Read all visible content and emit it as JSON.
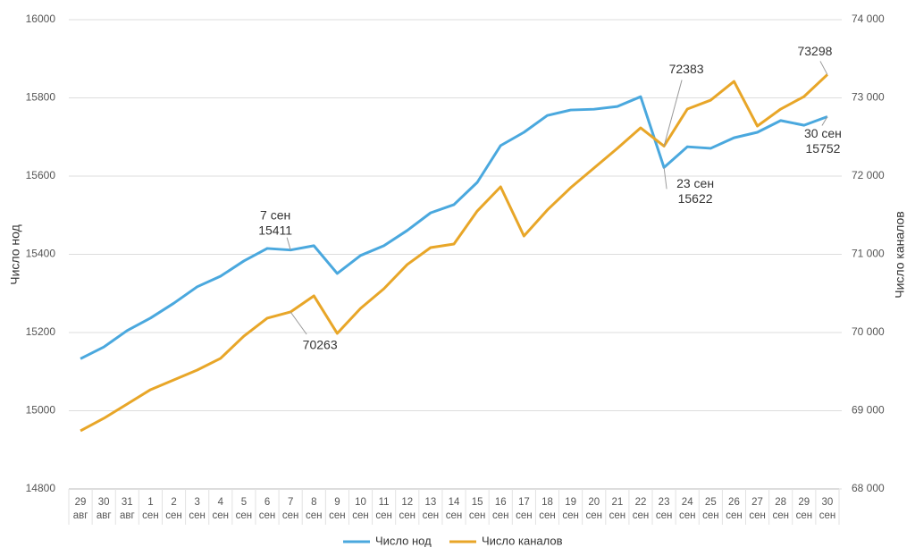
{
  "chart_data": {
    "type": "line",
    "categories": [
      "29 авг",
      "30 авг",
      "31 авг",
      "1 сен",
      "2 сен",
      "3 сен",
      "4 сен",
      "5 сен",
      "6 сен",
      "7 сен",
      "8 сен",
      "9 сен",
      "10 сен",
      "11 сен",
      "12 сен",
      "13 сен",
      "14 сен",
      "15 сен",
      "16 сен",
      "17 сен",
      "18 сен",
      "19 сен",
      "20 сен",
      "21 сен",
      "22 сен",
      "23 сен",
      "24 сен",
      "25 сен",
      "26 сен",
      "27 сен",
      "28 сен",
      "29 сен",
      "30 сен"
    ],
    "series": [
      {
        "name": "Число нод",
        "color": "#4aa8de",
        "axis": "y",
        "values": [
          15133,
          15163,
          15205,
          15237,
          15275,
          15317,
          15344,
          15383,
          15415,
          15411,
          15422,
          15351,
          15397,
          15422,
          15461,
          15506,
          15527,
          15584,
          15678,
          15712,
          15755,
          15769,
          15771,
          15778,
          15803,
          15622,
          15675,
          15671,
          15698,
          15712,
          15742,
          15730,
          15752
        ]
      },
      {
        "name": "Число каналов",
        "color": "#e8a628",
        "axis": "y2",
        "values": [
          68743,
          68903,
          69086,
          69269,
          69394,
          69520,
          69669,
          69954,
          70183,
          70263,
          70469,
          69989,
          70309,
          70560,
          70869,
          71086,
          71131,
          71554,
          71863,
          71234,
          71566,
          71851,
          72103,
          72354,
          72617,
          72383,
          72857,
          72971,
          73211,
          72640,
          72857,
          73017,
          73298
        ]
      }
    ],
    "ylabel": "Число нод",
    "y2label": "Число каналов",
    "ylim": [
      14800,
      16000
    ],
    "yticks": [
      14800,
      15000,
      15200,
      15400,
      15600,
      15800,
      16000
    ],
    "y2lim": [
      68000,
      74000
    ],
    "y2ticks": [
      {
        "value": 68000,
        "label": "68 000"
      },
      {
        "value": 69000,
        "label": "69 000"
      },
      {
        "value": 70000,
        "label": "70 000"
      },
      {
        "value": 71000,
        "label": "71 000"
      },
      {
        "value": 72000,
        "label": "72 000"
      },
      {
        "value": 73000,
        "label": "73 000"
      },
      {
        "value": 74000,
        "label": "74 000"
      }
    ],
    "grid": true,
    "legend": "bottom",
    "annotations": [
      {
        "series": "Число нод",
        "x": "7 сен",
        "y": 15411
      },
      {
        "series": "Число каналов",
        "y": 70263
      },
      {
        "series": "Число каналов",
        "y": 72383
      },
      {
        "series": "Число нод",
        "x": "23 сен",
        "y": 15622
      },
      {
        "series": "Число нод",
        "x": "30 сен",
        "y": 15752
      },
      {
        "series": "Число каналов",
        "y": 73298
      }
    ]
  }
}
